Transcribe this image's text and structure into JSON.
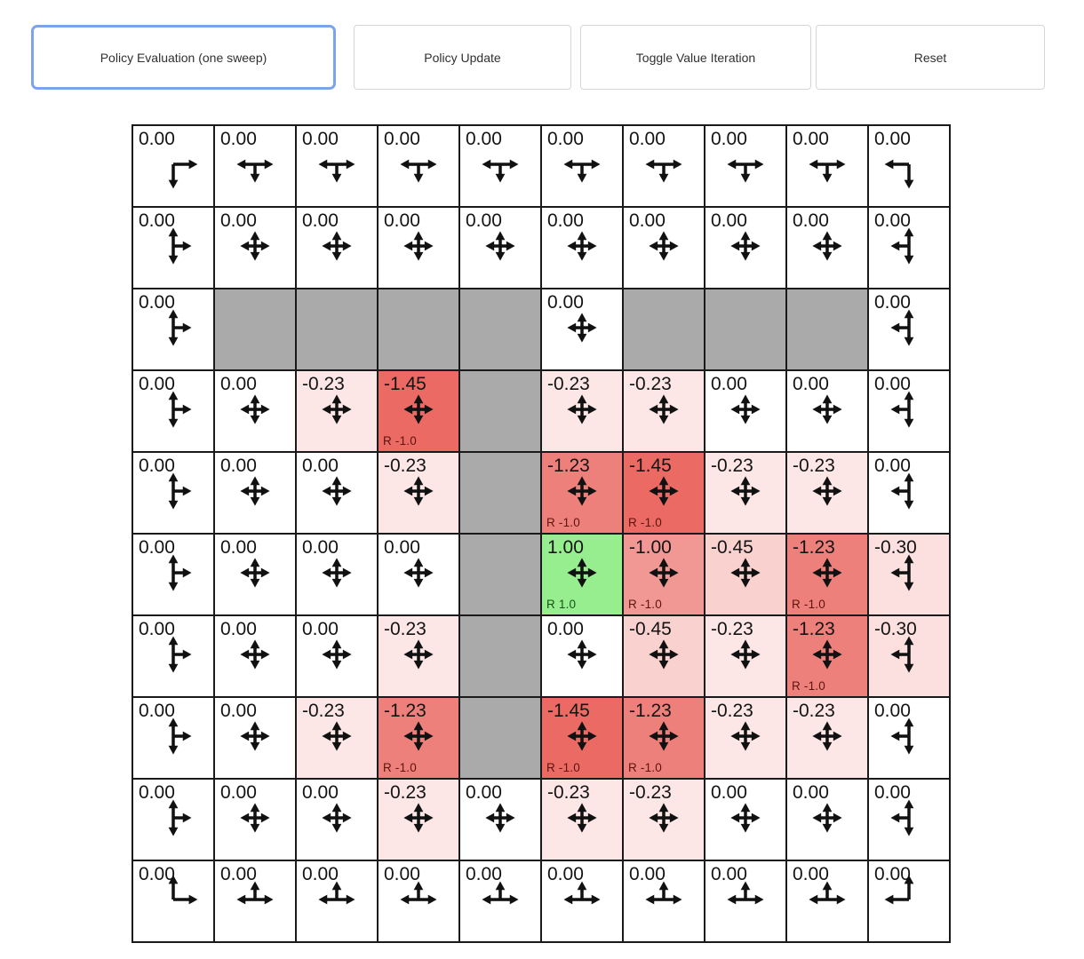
{
  "toolbar": {
    "buttons": [
      {
        "label": "Policy Evaluation (one sweep)",
        "active": true
      },
      {
        "label": "Policy Update",
        "active": false
      },
      {
        "label": "Toggle Value Iteration",
        "active": false
      },
      {
        "label": "Reset",
        "active": false
      }
    ]
  },
  "palette": {
    "active_button_border": "#7ba4ec",
    "button_border": "#d6d6d6",
    "button_text": "#303030",
    "grid_line": "#1a1a1a",
    "wall_bg": "#aaaaaa",
    "zero_cell_bg": "#ffffff",
    "positive_cell_bg": "#96ee8e",
    "strongest_negative_cell_bg": "#eb6a64",
    "value_text": "#141414",
    "arrow_color": "#111111",
    "reward_negative_text": "#5e140e",
    "reward_positive_text": "#155415"
  },
  "grid": {
    "rows": 10,
    "cols": 10,
    "value_color_rule": "cell background is white at value 0, tinted red proportionally for negative values, tinted green for positive values",
    "arrow_rule": "each non-wall cell shows equal-length policy arrows toward every direction that stays on the 10x10 grid (corners 2 long arrows, edges 3 medium arrows, interior 4 short arrows forming a star)",
    "cells": [
      [
        {
          "v": "0.00"
        },
        {
          "v": "0.00"
        },
        {
          "v": "0.00"
        },
        {
          "v": "0.00"
        },
        {
          "v": "0.00"
        },
        {
          "v": "0.00"
        },
        {
          "v": "0.00"
        },
        {
          "v": "0.00"
        },
        {
          "v": "0.00"
        },
        {
          "v": "0.00"
        }
      ],
      [
        {
          "v": "0.00"
        },
        {
          "v": "0.00"
        },
        {
          "v": "0.00"
        },
        {
          "v": "0.00"
        },
        {
          "v": "0.00"
        },
        {
          "v": "0.00"
        },
        {
          "v": "0.00"
        },
        {
          "v": "0.00"
        },
        {
          "v": "0.00"
        },
        {
          "v": "0.00"
        }
      ],
      [
        {
          "v": "0.00"
        },
        {
          "wall": true
        },
        {
          "wall": true
        },
        {
          "wall": true
        },
        {
          "wall": true
        },
        {
          "v": "0.00"
        },
        {
          "wall": true
        },
        {
          "wall": true
        },
        {
          "wall": true
        },
        {
          "v": "0.00"
        }
      ],
      [
        {
          "v": "0.00"
        },
        {
          "v": "0.00"
        },
        {
          "v": "-0.23"
        },
        {
          "v": "-1.45",
          "r": "R -1.0"
        },
        {
          "wall": true
        },
        {
          "v": "-0.23"
        },
        {
          "v": "-0.23"
        },
        {
          "v": "0.00"
        },
        {
          "v": "0.00"
        },
        {
          "v": "0.00"
        }
      ],
      [
        {
          "v": "0.00"
        },
        {
          "v": "0.00"
        },
        {
          "v": "0.00"
        },
        {
          "v": "-0.23"
        },
        {
          "wall": true
        },
        {
          "v": "-1.23",
          "r": "R -1.0"
        },
        {
          "v": "-1.45",
          "r": "R -1.0"
        },
        {
          "v": "-0.23"
        },
        {
          "v": "-0.23"
        },
        {
          "v": "0.00"
        }
      ],
      [
        {
          "v": "0.00"
        },
        {
          "v": "0.00"
        },
        {
          "v": "0.00"
        },
        {
          "v": "0.00"
        },
        {
          "wall": true
        },
        {
          "v": "1.00",
          "r": "R 1.0"
        },
        {
          "v": "-1.00",
          "r": "R -1.0"
        },
        {
          "v": "-0.45"
        },
        {
          "v": "-1.23",
          "r": "R -1.0"
        },
        {
          "v": "-0.30"
        }
      ],
      [
        {
          "v": "0.00"
        },
        {
          "v": "0.00"
        },
        {
          "v": "0.00"
        },
        {
          "v": "-0.23"
        },
        {
          "wall": true
        },
        {
          "v": "0.00"
        },
        {
          "v": "-0.45"
        },
        {
          "v": "-0.23"
        },
        {
          "v": "-1.23",
          "r": "R -1.0"
        },
        {
          "v": "-0.30"
        }
      ],
      [
        {
          "v": "0.00"
        },
        {
          "v": "0.00"
        },
        {
          "v": "-0.23"
        },
        {
          "v": "-1.23",
          "r": "R -1.0"
        },
        {
          "wall": true
        },
        {
          "v": "-1.45",
          "r": "R -1.0"
        },
        {
          "v": "-1.23",
          "r": "R -1.0"
        },
        {
          "v": "-0.23"
        },
        {
          "v": "-0.23"
        },
        {
          "v": "0.00"
        }
      ],
      [
        {
          "v": "0.00"
        },
        {
          "v": "0.00"
        },
        {
          "v": "0.00"
        },
        {
          "v": "-0.23"
        },
        {
          "v": "0.00"
        },
        {
          "v": "-0.23"
        },
        {
          "v": "-0.23"
        },
        {
          "v": "0.00"
        },
        {
          "v": "0.00"
        },
        {
          "v": "0.00"
        }
      ],
      [
        {
          "v": "0.00"
        },
        {
          "v": "0.00"
        },
        {
          "v": "0.00"
        },
        {
          "v": "0.00"
        },
        {
          "v": "0.00"
        },
        {
          "v": "0.00"
        },
        {
          "v": "0.00"
        },
        {
          "v": "0.00"
        },
        {
          "v": "0.00"
        },
        {
          "v": "0.00"
        }
      ]
    ]
  }
}
